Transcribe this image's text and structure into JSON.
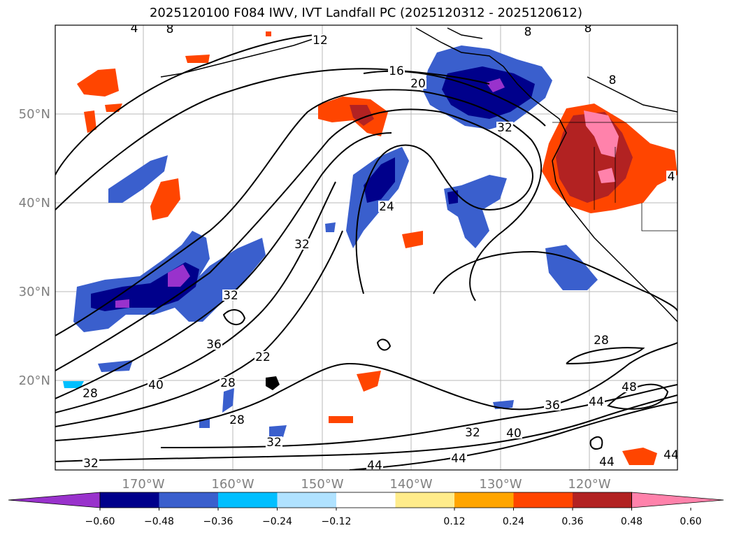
{
  "title": "2025120100 F084 IWV, IVT Landfall PC (2025120312 - 2025120612)",
  "map": {
    "lat_labels": [
      "50°N",
      "40°N",
      "30°N",
      "20°N"
    ],
    "lon_labels": [
      "170°W",
      "160°W",
      "150°W",
      "140°W",
      "130°W",
      "120°W"
    ],
    "contour_labels": [
      "4",
      "8",
      "8",
      "8",
      "8",
      "12",
      "16",
      "20",
      "32",
      "24",
      "32",
      "32",
      "36",
      "22",
      "28",
      "28",
      "40",
      "28",
      "32",
      "32",
      "28",
      "36",
      "40",
      "32",
      "44",
      "44",
      "44",
      "48",
      "44",
      "44",
      "4"
    ],
    "gridlines": true
  },
  "colorbar": {
    "ticks": [
      "−0.60",
      "−0.48",
      "−0.36",
      "−0.24",
      "−0.12",
      "0.12",
      "0.24",
      "0.36",
      "0.48",
      "0.60"
    ],
    "colors": [
      "#9932cc",
      "#00008b",
      "#3a5fcd",
      "#00bfff",
      "#b0e2ff",
      "#ffffff",
      "#ffec8b",
      "#ffa500",
      "#ff4500",
      "#b22222",
      "#ff82ab"
    ],
    "extend": "both"
  }
}
